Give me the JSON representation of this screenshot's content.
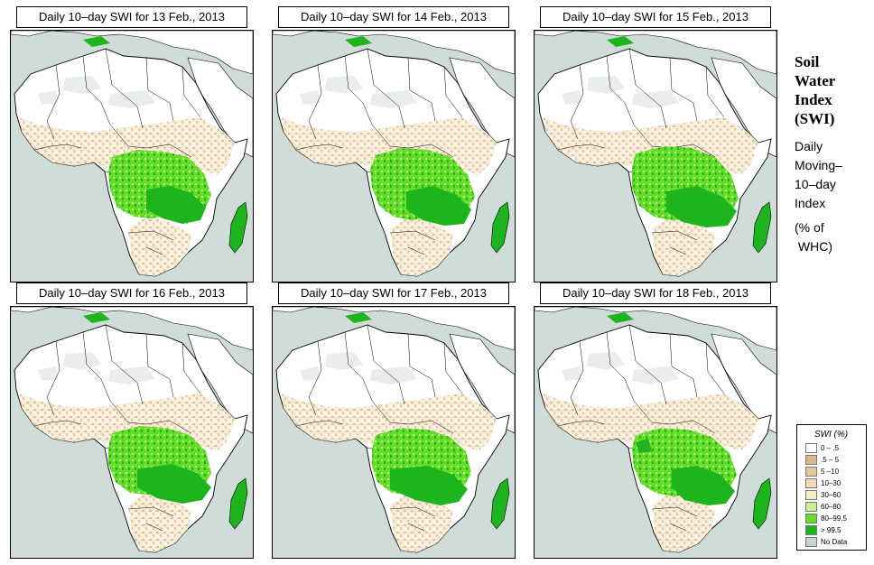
{
  "panels": [
    {
      "title": "Daily 10–day SWI for  13 Feb., 2013"
    },
    {
      "title": "Daily 10–day SWI for  14 Feb., 2013"
    },
    {
      "title": "Daily 10–day SWI for  15 Feb., 2013"
    },
    {
      "title": "Daily 10–day SWI for  16 Feb., 2013"
    },
    {
      "title": "Daily 10–day SWI for  17 Feb., 2013"
    },
    {
      "title": "Daily 10–day SWI for  18 Feb., 2013"
    }
  ],
  "side": {
    "title_lines": [
      "Soil",
      "Water",
      "Index",
      "(SWI)"
    ],
    "subtitle_lines": [
      "Daily",
      "Moving–",
      "10–day",
      "Index"
    ],
    "unit_lines": [
      "(% of",
      " WHC)"
    ]
  },
  "legend": {
    "title": "SWI (%)",
    "items": [
      {
        "label": "0 – .5",
        "color": "#ffffff"
      },
      {
        "label": ".5 – 5",
        "color": "#d9b98c"
      },
      {
        "label": "5 –10",
        "color": "#e3c699"
      },
      {
        "label": "10–30",
        "color": "#f0dcb4"
      },
      {
        "label": "30–60",
        "color": "#f4efc6"
      },
      {
        "label": "60–80",
        "color": "#c8f08c"
      },
      {
        "label": "80–99.5",
        "color": "#64dc28"
      },
      {
        "label": "> 99.5",
        "color": "#1eb41e"
      },
      {
        "label": "No Data",
        "color": "#c8d4d2"
      }
    ]
  }
}
